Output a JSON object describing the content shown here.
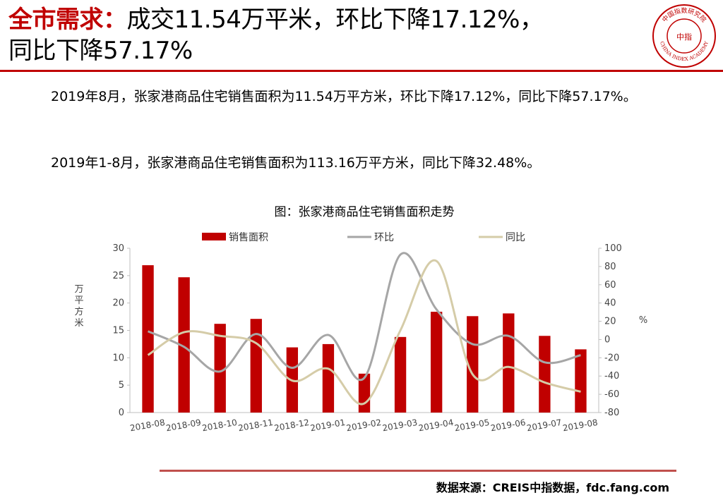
{
  "header": {
    "title_highlight": "全市需求：",
    "title_line1": "成交11.54万平米，环比下降17.12%，",
    "title_line2": "同比下降57.17%",
    "logo_text_top": "中国指数研究院",
    "logo_text_center": "中指",
    "logo_text_bottom": "CHINA INDEX ACADEMY"
  },
  "body": {
    "paragraph1": "2019年8月，张家港商品住宅销售面积为11.54万平方米，环比下降17.12%，同比下降57.17%。",
    "paragraph2": "2019年1-8月，张家港商品住宅销售面积为113.16万平方米，同比下降32.48%。"
  },
  "footer": {
    "source": "数据来源：CREIS中指数据，fdc.fang.com"
  },
  "colors": {
    "accent": "#c00000",
    "bar": "#c00000",
    "mom_line": "#a6a6a6",
    "yoy_line": "#d5cca8"
  },
  "chart_data": {
    "type": "bar",
    "title": "图：张家港商品住宅销售面积走势",
    "categories": [
      "2018-08",
      "2018-09",
      "2018-10",
      "2018-11",
      "2018-12",
      "2019-01",
      "2019-02",
      "2019-03",
      "2019-04",
      "2019-05",
      "2019-06",
      "2019-07",
      "2019-08"
    ],
    "series": [
      {
        "name": "销售面积",
        "type": "bar",
        "axis": "left",
        "values": [
          26.9,
          24.7,
          16.2,
          17.1,
          11.9,
          12.5,
          7.1,
          13.8,
          18.4,
          17.6,
          18.1,
          14.0,
          11.54
        ]
      },
      {
        "name": "环比",
        "type": "line",
        "axis": "right",
        "values": [
          9,
          -8,
          -35,
          6,
          -31,
          5,
          -42,
          93,
          33,
          -5,
          4,
          -25,
          -17.12
        ]
      },
      {
        "name": "同比",
        "type": "line",
        "axis": "right",
        "values": [
          -17,
          8,
          4,
          -4,
          -45,
          -32,
          -70,
          10,
          86,
          -38,
          -30,
          -47,
          -57.17
        ]
      }
    ],
    "ylabel": "万平方米",
    "y2label": "%",
    "ylim": [
      0,
      30
    ],
    "y2lim": [
      -80,
      100
    ],
    "yticks": [
      0,
      5,
      10,
      15,
      20,
      25,
      30
    ],
    "y2ticks": [
      -80,
      -60,
      -40,
      -20,
      0,
      20,
      40,
      60,
      80,
      100
    ],
    "legend": "top",
    "grid": false
  }
}
